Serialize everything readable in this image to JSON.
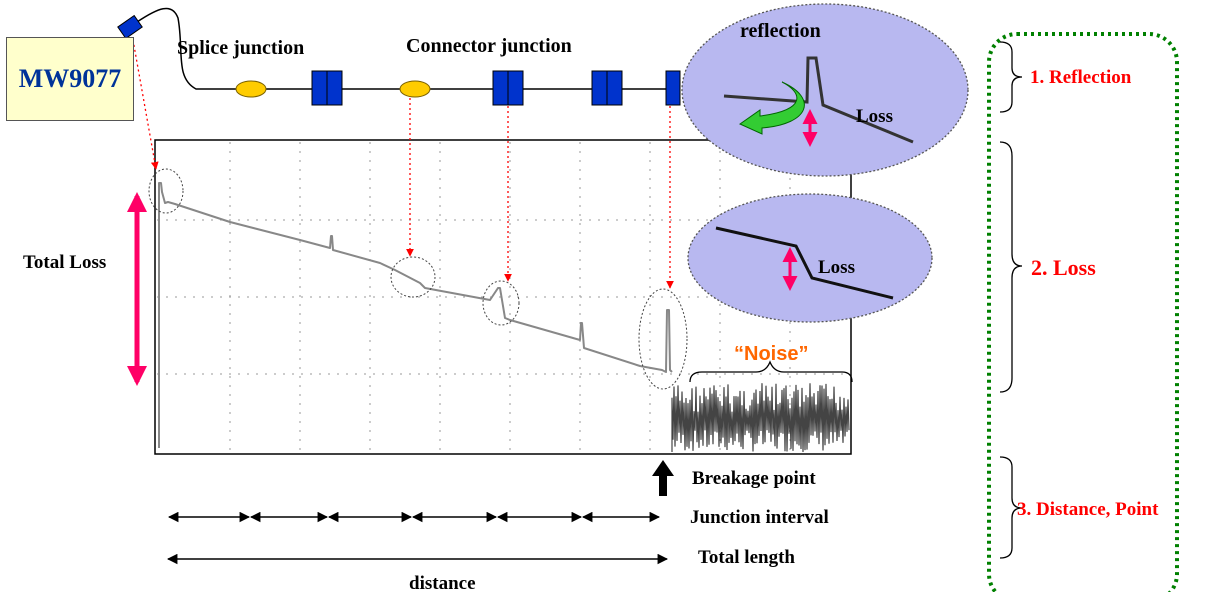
{
  "device": {
    "label": "MW9077"
  },
  "fiber": {
    "splice_label": "Splice junction",
    "connector_label": "Connector junction"
  },
  "callouts": {
    "reflection_label": "reflection",
    "reflection_loss_label": "Loss",
    "loss_loss_label": "Loss",
    "noise_label": "“Noise”"
  },
  "trace": {
    "total_loss_label": "Total Loss"
  },
  "below_chart": {
    "breakage_label": "Breakage point",
    "junction_interval_label": "Junction interval",
    "total_length_label": "Total length",
    "distance_label": "distance"
  },
  "categories": [
    {
      "label": "1. Reflection"
    },
    {
      "label": "2. Loss"
    },
    {
      "label": "3. Distance, Point"
    }
  ],
  "colors": {
    "device_fill": "#ffffcc",
    "device_text": "#003399",
    "splice": "#ffcc00",
    "connector": "#0033cc",
    "pointer": "#ff0000",
    "loss_arrow": "#ff0066",
    "bubble": "#b8b8f0",
    "category_text": "#ff0000",
    "frame": "#008000",
    "noise_text": "#ff6600"
  }
}
